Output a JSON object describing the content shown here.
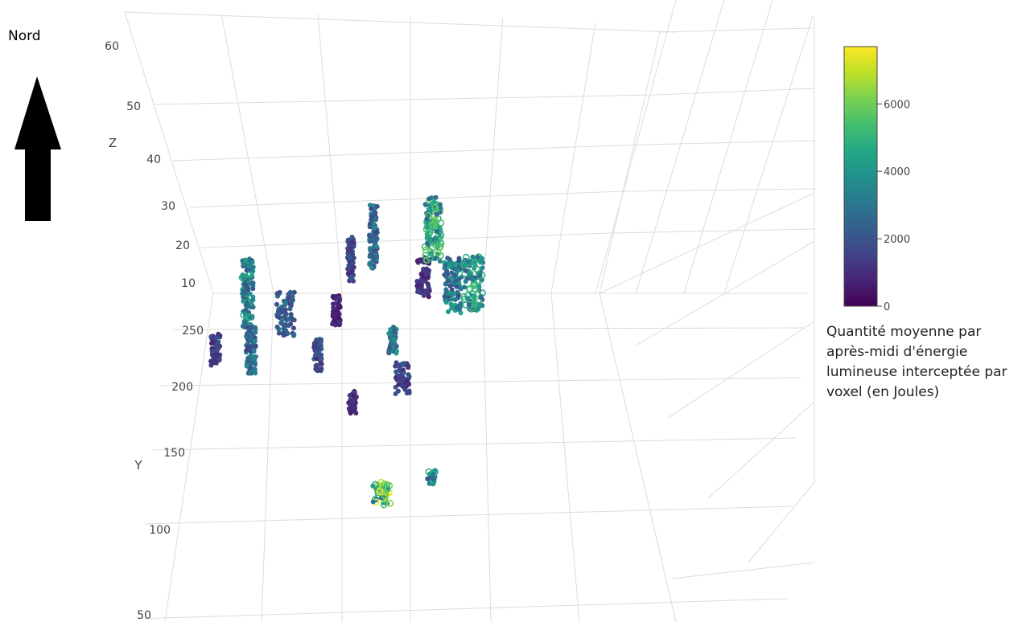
{
  "chart_data": {
    "type": "scatter3d",
    "title": "",
    "axes": {
      "x": {
        "label": "",
        "ticks": []
      },
      "y": {
        "label": "Y",
        "ticks": [
          50,
          100,
          150,
          200,
          250
        ]
      },
      "z": {
        "label": "Z",
        "ticks": [
          10,
          20,
          30,
          40,
          50,
          60
        ]
      }
    },
    "colorbar": {
      "title": "Quantité moyenne par après-midi d'énergie lumineuse interceptée par voxel (en Joules)",
      "range": [
        0,
        7700
      ],
      "ticks": [
        0,
        2000,
        4000,
        6000
      ],
      "colorscale": "viridis"
    },
    "clusters": [
      {
        "id": "c1",
        "y": 232,
        "z_range": [
          10,
          18
        ],
        "mean_energy": 1400
      },
      {
        "id": "c2",
        "y": 238,
        "z_range": [
          10,
          24
        ],
        "mean_energy": 3300
      },
      {
        "id": "c3",
        "y": 228,
        "z_range": [
          10,
          22
        ],
        "mean_energy": 2700
      },
      {
        "id": "c4",
        "y": 242,
        "z_range": [
          10,
          20
        ],
        "mean_energy": 2200
      },
      {
        "id": "c5",
        "y": 215,
        "z_range": [
          10,
          14
        ],
        "mean_energy": 1700
      },
      {
        "id": "c6",
        "y": 248,
        "z_range": [
          10,
          14
        ],
        "mean_energy": 800
      },
      {
        "id": "c7",
        "y": 250,
        "z_range": [
          10,
          22
        ],
        "mean_energy": 1600
      },
      {
        "id": "c8",
        "y": 254,
        "z_range": [
          10,
          26
        ],
        "mean_energy": 2600
      },
      {
        "id": "c9",
        "y": 222,
        "z_range": [
          10,
          14
        ],
        "mean_energy": 2900
      },
      {
        "id": "c10",
        "y": 262,
        "z_range": [
          10,
          18
        ],
        "mean_energy": 1100
      },
      {
        "id": "c11",
        "y": 263,
        "z_range": [
          10,
          24
        ],
        "mean_energy": 4200
      },
      {
        "id": "c12",
        "y": 262,
        "z_range": [
          10,
          22
        ],
        "mean_energy": 3100
      },
      {
        "id": "c13",
        "y": 256,
        "z_range": [
          10,
          22
        ],
        "mean_energy": 3800
      },
      {
        "id": "c14",
        "y": 208,
        "z_range": [
          10,
          12
        ],
        "mean_energy": 900
      },
      {
        "id": "c15",
        "y": 210,
        "z_range": [
          10,
          14
        ],
        "mean_energy": 1500
      },
      {
        "id": "c16",
        "y": 122,
        "z_range": [
          10,
          14
        ],
        "mean_energy": 5300
      },
      {
        "id": "c17",
        "y": 125,
        "z_range": [
          10,
          12
        ],
        "mean_energy": 3500
      }
    ]
  },
  "annotations": {
    "north_label": "Nord"
  },
  "colors": {
    "arrow": "#000000",
    "grid": "#d9d9d9",
    "text": "#444444"
  }
}
